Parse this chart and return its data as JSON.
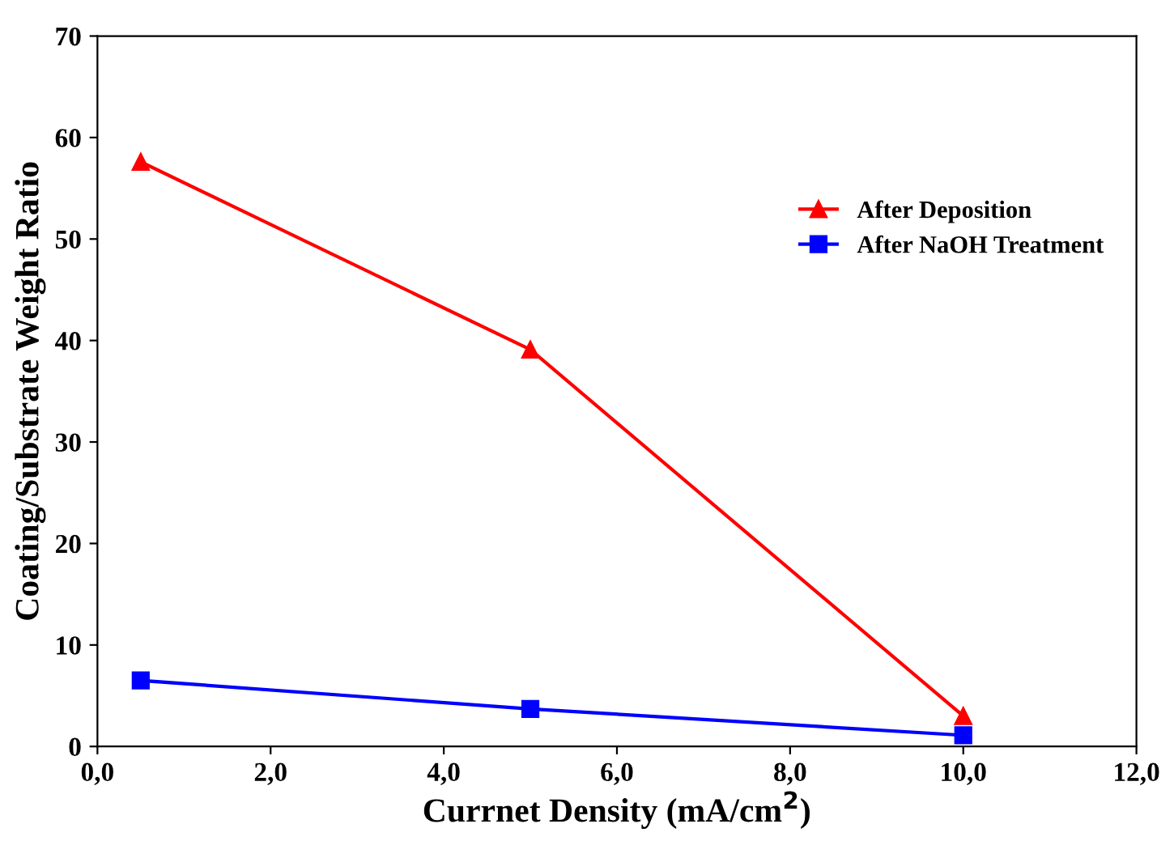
{
  "chart_data": {
    "type": "line",
    "xlabel": "Currnet Density (mA/cm$^{2}$)",
    "ylabel": "Coating/Substrate Weight Ratio",
    "x": [
      0.5,
      5,
      10
    ],
    "series": [
      {
        "name": "After Deposition",
        "color": "#ff0000",
        "values": [
          57.6,
          39.1,
          3.0
        ],
        "marker": "triangle"
      },
      {
        "name": "After NaOH Treatment",
        "color": "#0000ff",
        "values": [
          6.5,
          3.7,
          1.1
        ],
        "marker": "square"
      }
    ],
    "xlim": [
      0,
      12
    ],
    "xticks": [
      {
        "value": 0,
        "label": "0,0"
      },
      {
        "value": 2,
        "label": "2,0"
      },
      {
        "value": 4,
        "label": "4,0"
      },
      {
        "value": 6,
        "label": "6,0"
      },
      {
        "value": 8,
        "label": "8,0"
      },
      {
        "value": 10,
        "label": "10,0"
      },
      {
        "value": 12,
        "label": "12,0"
      }
    ],
    "ylim": [
      0,
      70
    ],
    "yticks": [
      0,
      10,
      20,
      30,
      40,
      50,
      60,
      70
    ],
    "grid": false,
    "legend": "top right",
    "line_style": "solid"
  }
}
